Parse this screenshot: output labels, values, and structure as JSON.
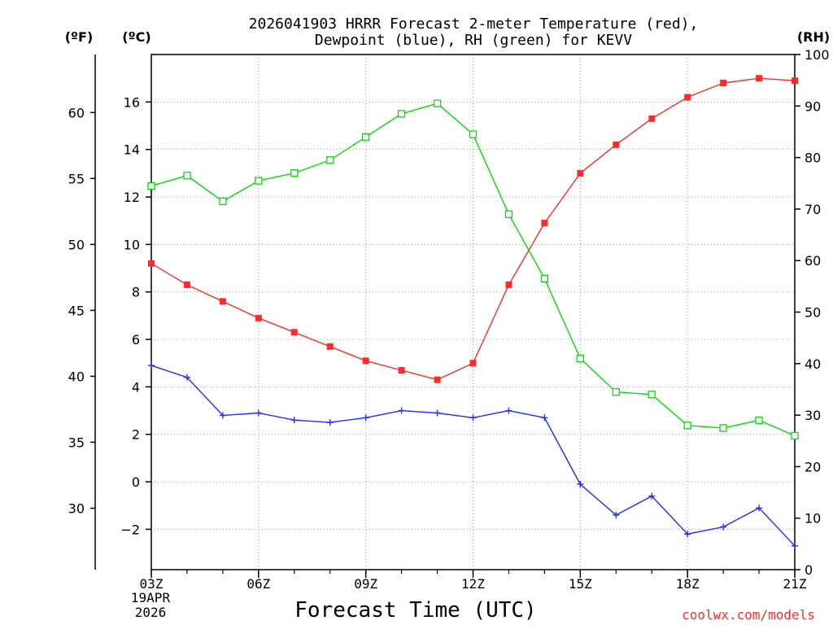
{
  "chart_data": {
    "type": "line",
    "title_lines": [
      "2026041903 HRRR Forecast 2-meter Temperature (red),",
      "Dewpoint (blue), RH (green) for KEVV"
    ],
    "unit_left_f": "(ºF)",
    "unit_left_c": "(ºC)",
    "unit_right_rh": "(RH)",
    "xlabel": "Forecast Time (UTC)",
    "credit": "coolwx.com/models",
    "x_hours": [
      3,
      4,
      5,
      6,
      7,
      8,
      9,
      10,
      11,
      12,
      13,
      14,
      15,
      16,
      17,
      18,
      19,
      20,
      21
    ],
    "x_range": [
      3,
      21
    ],
    "x_ticks": [
      {
        "hour": 3,
        "label": "03Z"
      },
      {
        "hour": 6,
        "label": "06Z"
      },
      {
        "hour": 9,
        "label": "09Z"
      },
      {
        "hour": 12,
        "label": "12Z"
      },
      {
        "hour": 15,
        "label": "15Z"
      },
      {
        "hour": 18,
        "label": "18Z"
      },
      {
        "hour": 21,
        "label": "21Z"
      }
    ],
    "date_lines": [
      "19APR",
      "2026"
    ],
    "celsius_axis": {
      "range": [
        -3.7,
        18.0
      ],
      "ticks": [
        -2,
        0,
        2,
        4,
        6,
        8,
        10,
        12,
        14,
        16
      ],
      "tick_labels": [
        "−2",
        "0",
        "2",
        "4",
        "6",
        "8",
        "10",
        "12",
        "14",
        "16"
      ]
    },
    "fahrenheit_axis": {
      "ticks": [
        30,
        35,
        40,
        45,
        50,
        55,
        60
      ],
      "tick_labels": [
        "30",
        "35",
        "40",
        "45",
        "50",
        "55",
        "60"
      ]
    },
    "rh_axis": {
      "range": [
        0,
        100
      ],
      "ticks": [
        0,
        10,
        20,
        30,
        40,
        50,
        60,
        70,
        80,
        90,
        100
      ],
      "tick_labels": [
        "0",
        "10",
        "20",
        "30",
        "40",
        "50",
        "60",
        "70",
        "80",
        "90",
        "100"
      ]
    },
    "series": [
      {
        "name": "Temperature",
        "axis": "celsius",
        "color": "#ff2a2a",
        "marker": "filled-square",
        "values": [
          9.2,
          8.3,
          7.6,
          6.9,
          6.3,
          5.7,
          5.1,
          4.7,
          4.3,
          5.0,
          8.3,
          10.9,
          13.0,
          14.2,
          15.3,
          16.2,
          16.8,
          17.0,
          16.9
        ]
      },
      {
        "name": "Dewpoint",
        "axis": "celsius",
        "color": "#1e2bff",
        "marker": "plus",
        "values": [
          4.9,
          4.4,
          2.8,
          2.9,
          2.6,
          2.5,
          2.7,
          3.0,
          2.9,
          2.7,
          3.0,
          2.7,
          -0.1,
          -1.4,
          -0.6,
          -2.2,
          -1.9,
          -1.1,
          -2.7
        ]
      },
      {
        "name": "RH",
        "axis": "rh",
        "color": "#00e000",
        "marker": "open-square",
        "values": [
          74.5,
          76.5,
          71.5,
          75.5,
          77.0,
          79.5,
          84.0,
          88.5,
          90.5,
          84.5,
          69.0,
          56.5,
          41.0,
          34.5,
          34.0,
          28.0,
          27.5,
          29.0,
          26.0
        ]
      }
    ]
  }
}
